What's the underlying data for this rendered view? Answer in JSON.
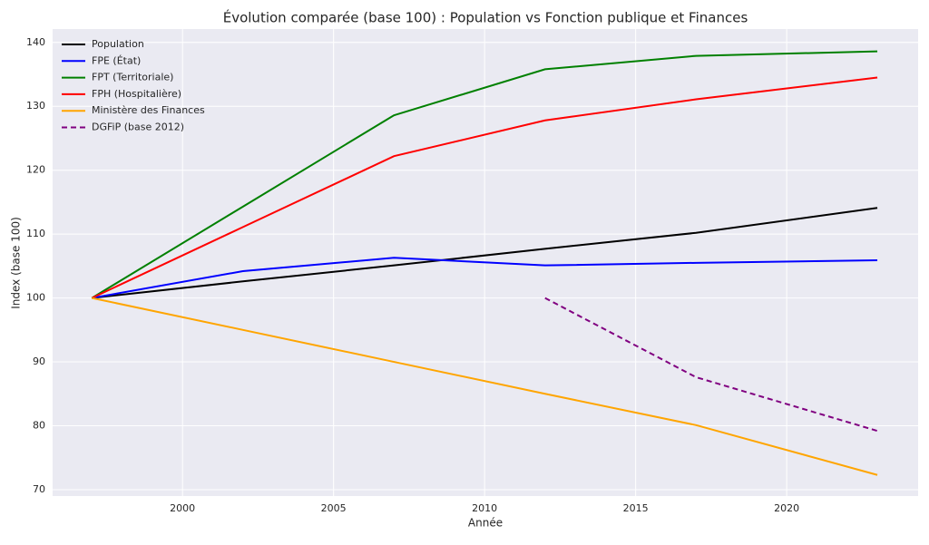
{
  "chart_data": {
    "type": "line",
    "title": "Évolution comparée (base 100) : Population vs Fonction publique et Finances",
    "xlabel": "Année",
    "ylabel": "Index (base 100)",
    "x": [
      1997,
      2002,
      2007,
      2012,
      2017,
      2023
    ],
    "series": [
      {
        "name": "Population",
        "color": "#000000",
        "values": [
          100,
          102.6,
          105.1,
          107.7,
          110.2,
          114.1
        ]
      },
      {
        "name": "FPE (État)",
        "color": "#0000ff",
        "values": [
          100,
          104.2,
          106.3,
          105.1,
          105.5,
          105.9
        ]
      },
      {
        "name": "FPT (Territoriale)",
        "color": "#008000",
        "values": [
          100,
          114.3,
          128.6,
          135.8,
          137.9,
          138.6
        ]
      },
      {
        "name": "FPH (Hospitalière)",
        "color": "#ff0000",
        "values": [
          100,
          111.1,
          122.2,
          127.8,
          131.1,
          134.5
        ]
      },
      {
        "name": "Ministère des Finances",
        "color": "#ffa500",
        "values": [
          100,
          95,
          90,
          85,
          80.1,
          72.3
        ]
      },
      {
        "name": "DGFiP (base 2012)",
        "color": "#800080",
        "dashed": true,
        "values": [
          null,
          null,
          null,
          100,
          87.6,
          79.2
        ]
      }
    ],
    "xlim": [
      1995.7,
      2024.35
    ],
    "xticks": [
      2000,
      2005,
      2010,
      2015,
      2020
    ],
    "ylim": [
      69.0,
      142.1
    ],
    "yticks": [
      70,
      80,
      90,
      100,
      110,
      120,
      130,
      140
    ],
    "grid": true,
    "legend": "upper-left"
  }
}
